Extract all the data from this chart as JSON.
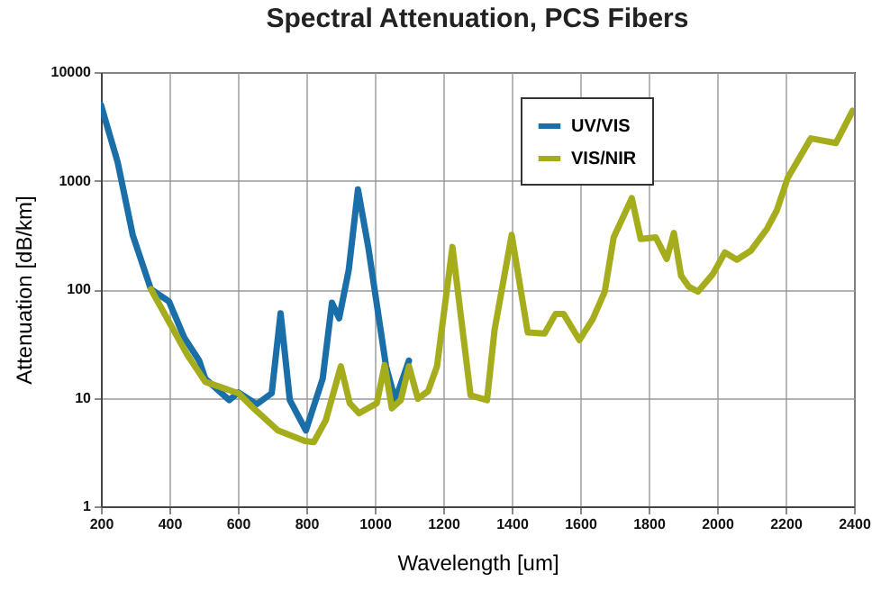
{
  "chart_data": {
    "type": "line",
    "title": "Spectral Attenuation, PCS Fibers",
    "xlabel": "Wavelength [um]",
    "ylabel": "Attenuation [dB/km]",
    "log": "y",
    "grid": true,
    "legend": "top right",
    "marker": "none",
    "line_style": "solid",
    "xlim": [
      200,
      2400
    ],
    "xticks": [
      200,
      400,
      600,
      800,
      1000,
      1200,
      1400,
      1600,
      1800,
      2000,
      2200,
      2400
    ],
    "ylim": [
      1,
      10000
    ],
    "yticks": [
      1,
      10,
      100,
      1000,
      10000
    ],
    "series": [
      {
        "name": "UV/VIS",
        "color": "#1a6fa8",
        "x": [
          200,
          249,
          293,
          346,
          399,
          443,
          487,
          505,
          575,
          602,
          655,
          699,
          725,
          752,
          799,
          848,
          875,
          896,
          924,
          951,
          981,
          1033,
          1060,
          1100
        ],
        "values": [
          5000,
          1480,
          316,
          100,
          77,
          36,
          22,
          15,
          9.5,
          11.2,
          8.7,
          11,
          60,
          9.5,
          5,
          15,
          75,
          54,
          150,
          830,
          245,
          19.5,
          9.5,
          22
        ]
      },
      {
        "name": "VIS/NIR",
        "color": "#a5ad1c",
        "x": [
          346,
          399,
          452,
          505,
          602,
          646,
          717,
          796,
          822,
          857,
          901,
          927,
          954,
          1006,
          1029,
          1050,
          1076,
          1100,
          1126,
          1156,
          1182,
          1227,
          1280,
          1328,
          1350,
          1400,
          1447,
          1496,
          1528,
          1552,
          1598,
          1637,
          1672,
          1698,
          1751,
          1777,
          1821,
          1853,
          1874,
          1895,
          1918,
          1944,
          1988,
          2023,
          2058,
          2098,
          2146,
          2175,
          2207,
          2274,
          2347,
          2396
        ],
        "values": [
          100,
          50,
          25,
          14,
          11,
          8,
          5,
          4,
          3.9,
          6.2,
          19.5,
          8.9,
          7.2,
          8.9,
          20,
          8,
          9.5,
          19.5,
          9.8,
          11.5,
          19.5,
          245,
          10.5,
          9.5,
          42,
          316,
          40,
          39,
          59,
          59,
          34,
          53,
          95,
          300,
          690,
          290,
          300,
          190,
          330,
          133,
          105,
          95,
          138,
          218,
          187,
          225,
          360,
          535,
          1070,
          2450,
          2220,
          4400
        ]
      }
    ]
  }
}
